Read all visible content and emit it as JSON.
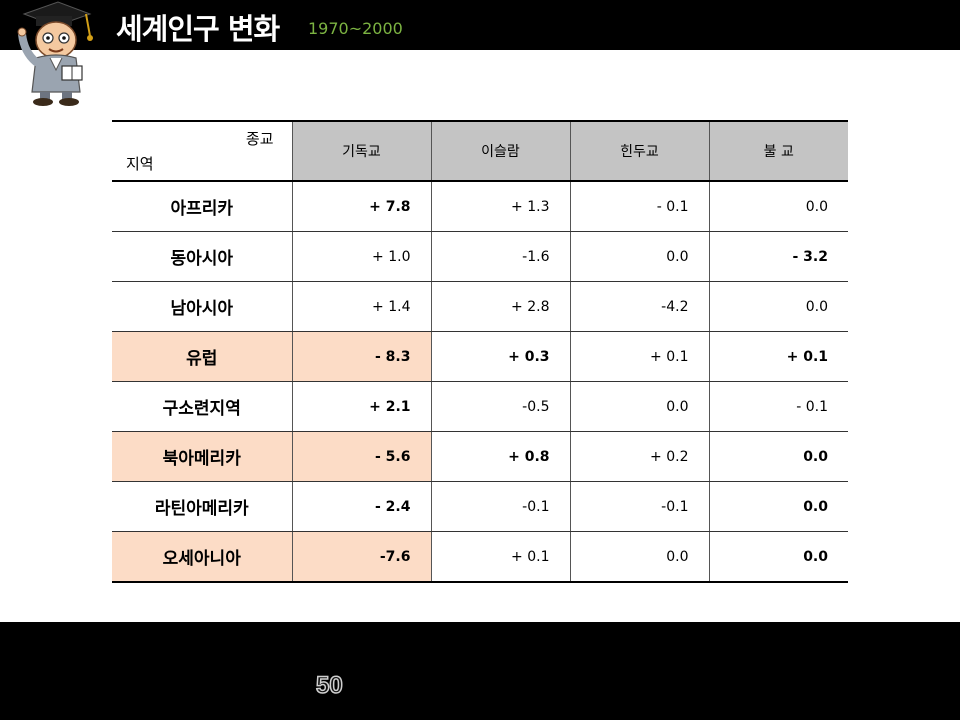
{
  "slide": {
    "title": "세계인구 변화",
    "subtitle": "1970~2000",
    "page_number": "50",
    "colors": {
      "bar": "#000000",
      "subtitle": "#7cb342",
      "header_fill": "#c4c4c4",
      "highlight_fill": "#fcdcc6",
      "blue_text": "#2a56c6"
    },
    "mascot_icon": "graduate-professor-icon"
  },
  "table": {
    "corner_top": "종교",
    "corner_bottom": "지역",
    "columns": [
      "기독교",
      "이슬람",
      "힌두교",
      "불  교"
    ],
    "rows": [
      {
        "region": "아프리카",
        "highlight": false,
        "values": [
          "+ 7.8",
          "+ 1.3",
          "- 0.1",
          "0.0"
        ],
        "styles": [
          "big",
          "plain",
          "plain",
          "plain"
        ]
      },
      {
        "region": "동아시아",
        "highlight": false,
        "values": [
          "+ 1.0",
          "-1.6",
          "0.0",
          "- 3.2"
        ],
        "styles": [
          "blue",
          "blue",
          "blue",
          "bigblue"
        ]
      },
      {
        "region": "남아시아",
        "highlight": false,
        "values": [
          "+ 1.4",
          "+ 2.8",
          "-4.2",
          "0.0"
        ],
        "styles": [
          "plain",
          "plain",
          "plain",
          "plain"
        ]
      },
      {
        "region": "유럽",
        "highlight": true,
        "values": [
          "- 8.3",
          "+ 0.3",
          "+ 0.1",
          "+ 0.1"
        ],
        "styles": [
          "big",
          "bold",
          "plain",
          "bold"
        ]
      },
      {
        "region": "구소련지역",
        "highlight": false,
        "values": [
          "+ 2.1",
          "-0.5",
          "0.0",
          "- 0.1"
        ],
        "styles": [
          "big",
          "plain",
          "plain",
          "plain"
        ]
      },
      {
        "region": "북아메리카",
        "highlight": true,
        "values": [
          "- 5.6",
          "+ 0.8",
          "+ 0.2",
          "0.0"
        ],
        "styles": [
          "big",
          "bold",
          "plain",
          "bold"
        ]
      },
      {
        "region": "라틴아메리카",
        "highlight": false,
        "values": [
          "- 2.4",
          "-0.1",
          "-0.1",
          "0.0"
        ],
        "styles": [
          "big",
          "plain",
          "plain",
          "bold"
        ]
      },
      {
        "region": "오세아니아",
        "highlight": true,
        "values": [
          "-7.6",
          "+ 0.1",
          "0.0",
          "0.0"
        ],
        "styles": [
          "big",
          "plain",
          "plain",
          "bold"
        ]
      }
    ]
  }
}
